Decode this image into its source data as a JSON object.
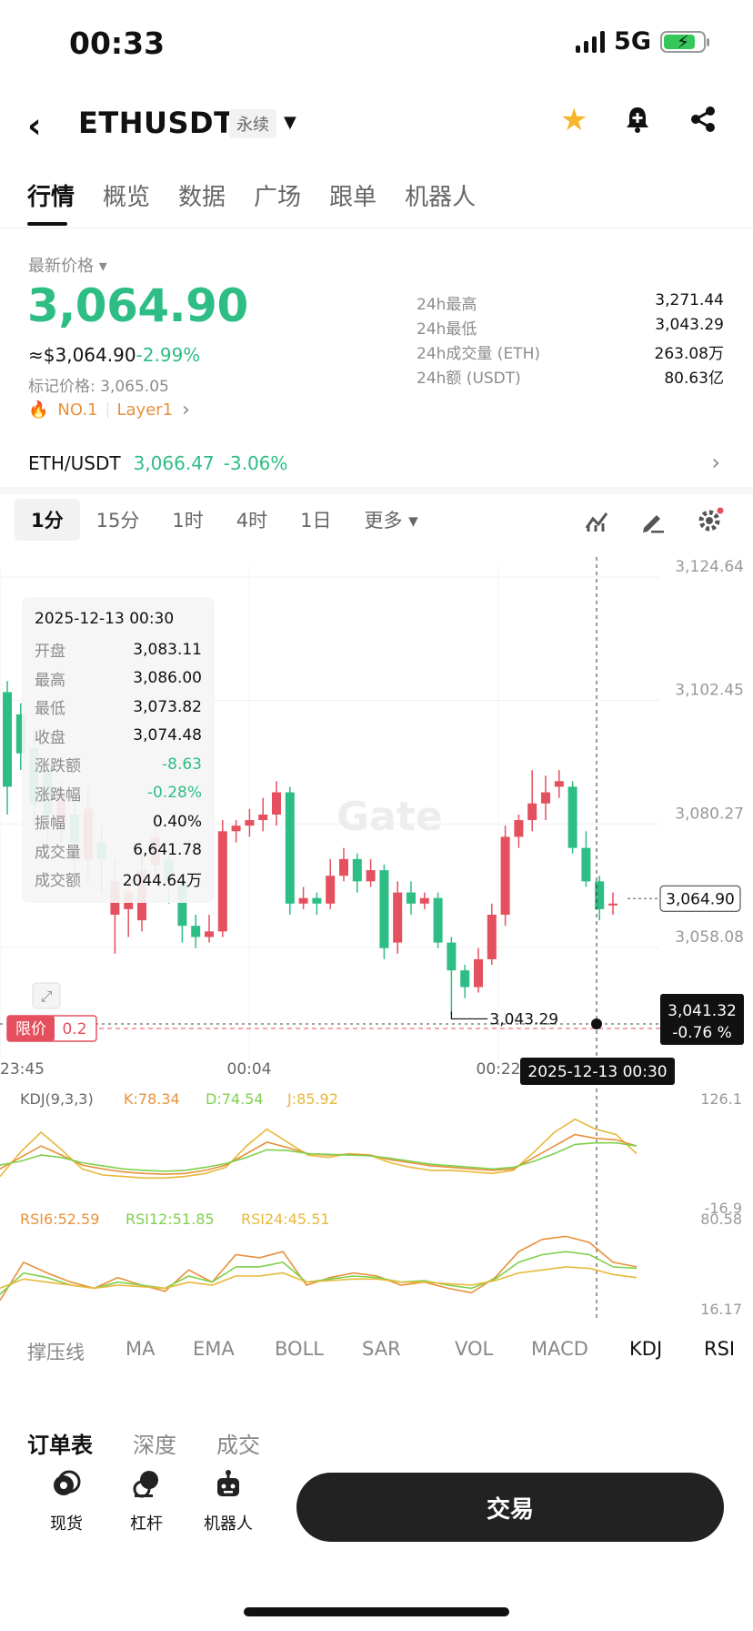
{
  "status_bar": {
    "time": "00:33",
    "network": "5G"
  },
  "header": {
    "symbol": "ETHUSDT",
    "contract_type": "永续",
    "icons": [
      "star-icon",
      "bell-plus-icon",
      "share-icon"
    ]
  },
  "tabs": [
    {
      "label": "行情",
      "active": true
    },
    {
      "label": "概览",
      "active": false
    },
    {
      "label": "数据",
      "active": false
    },
    {
      "label": "广场",
      "active": false
    },
    {
      "label": "跟单",
      "active": false
    },
    {
      "label": "机器人",
      "active": false
    }
  ],
  "price": {
    "latest_label": "最新价格",
    "last": "3,064.90",
    "usd": "≈$3,064.90",
    "change_pct": "-2.99%",
    "mark": "标记价格: 3,065.05",
    "rank_tag": "NO.1",
    "category_tag": "Layer1"
  },
  "stats": [
    {
      "label": "24h最高",
      "value": "3,271.44"
    },
    {
      "label": "24h最低",
      "value": "3,043.29"
    },
    {
      "label": "24h成交量 (ETH)",
      "value": "263.08万"
    },
    {
      "label": "24h额 (USDT)",
      "value": "80.63亿"
    }
  ],
  "spot_pair": {
    "name": "ETH/USDT",
    "price": "3,066.47",
    "change": "-3.06%"
  },
  "intervals": [
    "1分",
    "15分",
    "1时",
    "4时",
    "1日",
    "更多"
  ],
  "selected_interval": "1分",
  "tooltip": {
    "date": "2025-12-13 00:30",
    "rows": [
      {
        "label": "开盘",
        "value": "3,083.11"
      },
      {
        "label": "最高",
        "value": "3,086.00"
      },
      {
        "label": "最低",
        "value": "3,073.82"
      },
      {
        "label": "收盘",
        "value": "3,074.48"
      },
      {
        "label": "涨跌额",
        "value": "-8.63"
      },
      {
        "label": "涨跌幅",
        "value": "-0.28%"
      },
      {
        "label": "振幅",
        "value": "0.40%"
      },
      {
        "label": "成交量",
        "value": "6,641.78"
      },
      {
        "label": "成交额",
        "value": "2044.64万"
      }
    ]
  },
  "chart_data": {
    "type": "candlestick",
    "price_axis": [
      "3,124.64",
      "3,102.45",
      "3,080.27",
      "3,058.08"
    ],
    "ylim": [
      3036.0,
      3124.64
    ],
    "time_labels": [
      "23:45",
      "00:04",
      "00:22"
    ],
    "current_price_label": "3,064.90",
    "low_marker_label": "3,043.29",
    "low_marker_value": 3043.29,
    "crosshair_price": "3,041.32",
    "crosshair_pct": "-0.76 %",
    "crosshair_time": "2025-12-13 00:30",
    "limit_label": "限价",
    "limit_value": "0.2",
    "watermark": "Gate",
    "candles": [
      [
        3102,
        3085,
        3104,
        3080
      ],
      [
        3098,
        3091,
        3100,
        3088
      ],
      [
        3092,
        3082,
        3095,
        3078
      ],
      [
        3088,
        3080,
        3090,
        3072
      ],
      [
        3078,
        3084,
        3086,
        3075
      ],
      [
        3080,
        3075,
        3083,
        3070
      ],
      [
        3072,
        3081,
        3085,
        3068
      ],
      [
        3075,
        3072,
        3078,
        3066
      ],
      [
        3062,
        3068,
        3072,
        3055
      ],
      [
        3063,
        3066,
        3069,
        3058
      ],
      [
        3061,
        3070,
        3074,
        3059
      ],
      [
        3071,
        3076,
        3079,
        3068
      ],
      [
        3072,
        3068,
        3074,
        3064
      ],
      [
        3068,
        3060,
        3069,
        3057
      ],
      [
        3060,
        3058,
        3062,
        3056
      ],
      [
        3058,
        3059,
        3062,
        3057
      ],
      [
        3059,
        3077,
        3079,
        3058
      ],
      [
        3077,
        3078,
        3079,
        3075
      ],
      [
        3078,
        3079,
        3081,
        3076
      ],
      [
        3079,
        3080,
        3083,
        3077
      ],
      [
        3080,
        3084,
        3086,
        3078
      ],
      [
        3084,
        3064,
        3085,
        3062
      ],
      [
        3064,
        3065,
        3067,
        3063
      ],
      [
        3065,
        3064,
        3066,
        3062
      ],
      [
        3064,
        3069,
        3072,
        3063
      ],
      [
        3069,
        3072,
        3074,
        3068
      ],
      [
        3072,
        3068,
        3073,
        3066
      ],
      [
        3068,
        3070,
        3072,
        3067
      ],
      [
        3070,
        3056,
        3071,
        3054
      ],
      [
        3057,
        3066,
        3068,
        3055
      ],
      [
        3066,
        3064,
        3068,
        3062
      ],
      [
        3064,
        3065,
        3066,
        3063
      ],
      [
        3065,
        3057,
        3066,
        3056
      ],
      [
        3057,
        3052,
        3058,
        3044
      ],
      [
        3052,
        3049,
        3053,
        3047
      ],
      [
        3049,
        3054,
        3056,
        3048
      ],
      [
        3054,
        3062,
        3064,
        3053
      ],
      [
        3062,
        3076,
        3078,
        3060
      ],
      [
        3076,
        3079,
        3080,
        3074
      ],
      [
        3079,
        3082,
        3088,
        3077
      ],
      [
        3082,
        3084,
        3087,
        3079
      ],
      [
        3085,
        3086,
        3088,
        3083
      ],
      [
        3085,
        3074,
        3086,
        3073
      ],
      [
        3074,
        3068,
        3077,
        3067
      ],
      [
        3068,
        3063,
        3069,
        3061
      ],
      [
        3064,
        3064,
        3066,
        3062
      ]
    ],
    "kdj": {
      "label": "KDJ(9,3,3)",
      "k": "K:78.34",
      "d": "D:74.54",
      "j": "J:85.92",
      "axis": [
        "126.1",
        "-16.9"
      ],
      "k_values": [
        40,
        55,
        70,
        58,
        45,
        40,
        36,
        34,
        33,
        34,
        38,
        45,
        60,
        75,
        68,
        60,
        58,
        59,
        58,
        52,
        48,
        44,
        42,
        40,
        38,
        40,
        55,
        70,
        85,
        80,
        78,
        70
      ],
      "d_values": [
        45,
        50,
        58,
        55,
        48,
        44,
        40,
        38,
        37,
        38,
        42,
        47,
        55,
        65,
        64,
        60,
        59,
        58,
        57,
        54,
        50,
        46,
        44,
        42,
        40,
        42,
        50,
        60,
        72,
        74,
        74,
        70
      ],
      "j_values": [
        30,
        62,
        88,
        65,
        40,
        32,
        30,
        28,
        28,
        30,
        34,
        42,
        70,
        92,
        75,
        58,
        55,
        60,
        58,
        48,
        42,
        38,
        38,
        36,
        34,
        38,
        62,
        88,
        105,
        92,
        85,
        60
      ]
    },
    "rsi": {
      "rsi6": "RSI6:52.59",
      "rsi12": "RSI12:51.85",
      "rsi24": "RSI24:45.51",
      "axis": [
        "80.58",
        "16.17"
      ],
      "rsi6_values": [
        30,
        55,
        48,
        42,
        38,
        45,
        40,
        36,
        50,
        42,
        60,
        58,
        62,
        40,
        45,
        48,
        46,
        40,
        42,
        38,
        35,
        45,
        62,
        70,
        72,
        68,
        55,
        52
      ],
      "rsi12_values": [
        34,
        48,
        45,
        40,
        38,
        42,
        40,
        38,
        46,
        42,
        52,
        52,
        55,
        42,
        44,
        46,
        45,
        42,
        43,
        40,
        38,
        44,
        55,
        60,
        62,
        60,
        52,
        51
      ],
      "rsi24_values": [
        38,
        44,
        42,
        40,
        38,
        40,
        39,
        38,
        42,
        40,
        46,
        46,
        48,
        42,
        43,
        44,
        44,
        42,
        42,
        41,
        40,
        43,
        48,
        50,
        52,
        51,
        47,
        45
      ]
    }
  },
  "indicator_tabs": [
    "撑压线",
    "MA",
    "EMA",
    "BOLL",
    "SAR",
    "VOL",
    "MACD",
    "KDJ",
    "RSI"
  ],
  "bottom_tabs": [
    {
      "label": "订单表",
      "active": true
    },
    {
      "label": "深度",
      "active": false
    },
    {
      "label": "成交",
      "active": false
    }
  ],
  "footer_nav": [
    {
      "label": "现货",
      "icon": "spot-icon"
    },
    {
      "label": "杠杆",
      "icon": "margin-icon"
    },
    {
      "label": "机器人",
      "icon": "robot-icon"
    }
  ],
  "trade_button": "交易"
}
